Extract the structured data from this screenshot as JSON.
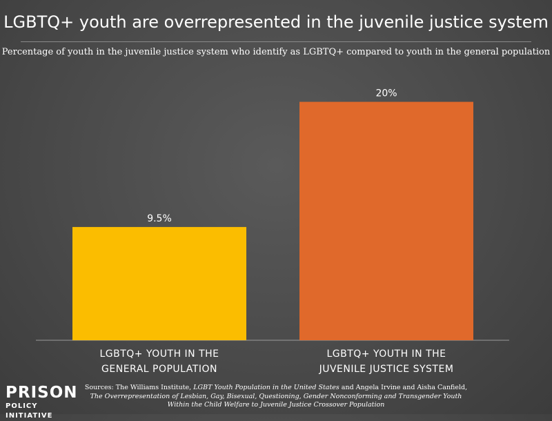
{
  "header": {
    "title": "LGBTQ+ youth are overrepresented in the juvenile justice system",
    "subtitle": "Percentage of youth in the juvenile justice system who identify as LGBTQ+ compared to youth in the general population"
  },
  "chart_data": {
    "type": "bar",
    "title": "LGBTQ+ youth are overrepresented in the juvenile justice system",
    "subtitle": "Percentage of youth in the juvenile justice system who identify as LGBTQ+ compared to youth in the general population",
    "categories": [
      "LGBTQ+ YOUTH IN THE GENERAL POPULATION",
      "LGBTQ+ YOUTH IN THE JUVENILE JUSTICE SYSTEM"
    ],
    "category_lines": [
      [
        "LGBTQ+ YOUTH IN THE",
        "GENERAL POPULATION"
      ],
      [
        "LGBTQ+ YOUTH IN THE",
        "JUVENILE JUSTICE SYSTEM"
      ]
    ],
    "values": [
      9.5,
      20
    ],
    "value_labels": [
      "9.5%",
      "20%"
    ],
    "colors": [
      "#fbbd00",
      "#e0692b"
    ],
    "xlabel": "",
    "ylabel": "",
    "ylim": [
      0,
      22
    ],
    "grid": false,
    "legend": "none"
  },
  "footer": {
    "logo_line1": "PRISON",
    "logo_line2": "POLICY INITIATIVE",
    "sources_parts": [
      {
        "text": "Sources: The Williams Institute, ",
        "italic": false
      },
      {
        "text": "LGBT Youth Population in the United States",
        "italic": true
      },
      {
        "text": " and Angela Irvine and Aisha Canfield, ",
        "italic": false
      },
      {
        "text": "The Overrepresentation of Lesbian, Gay, Bisexual, Questioning, Gender Nonconforming and Transgender Youth Within the Child Welfare to Juvenile Justice Crossover Population",
        "italic": true
      }
    ]
  }
}
